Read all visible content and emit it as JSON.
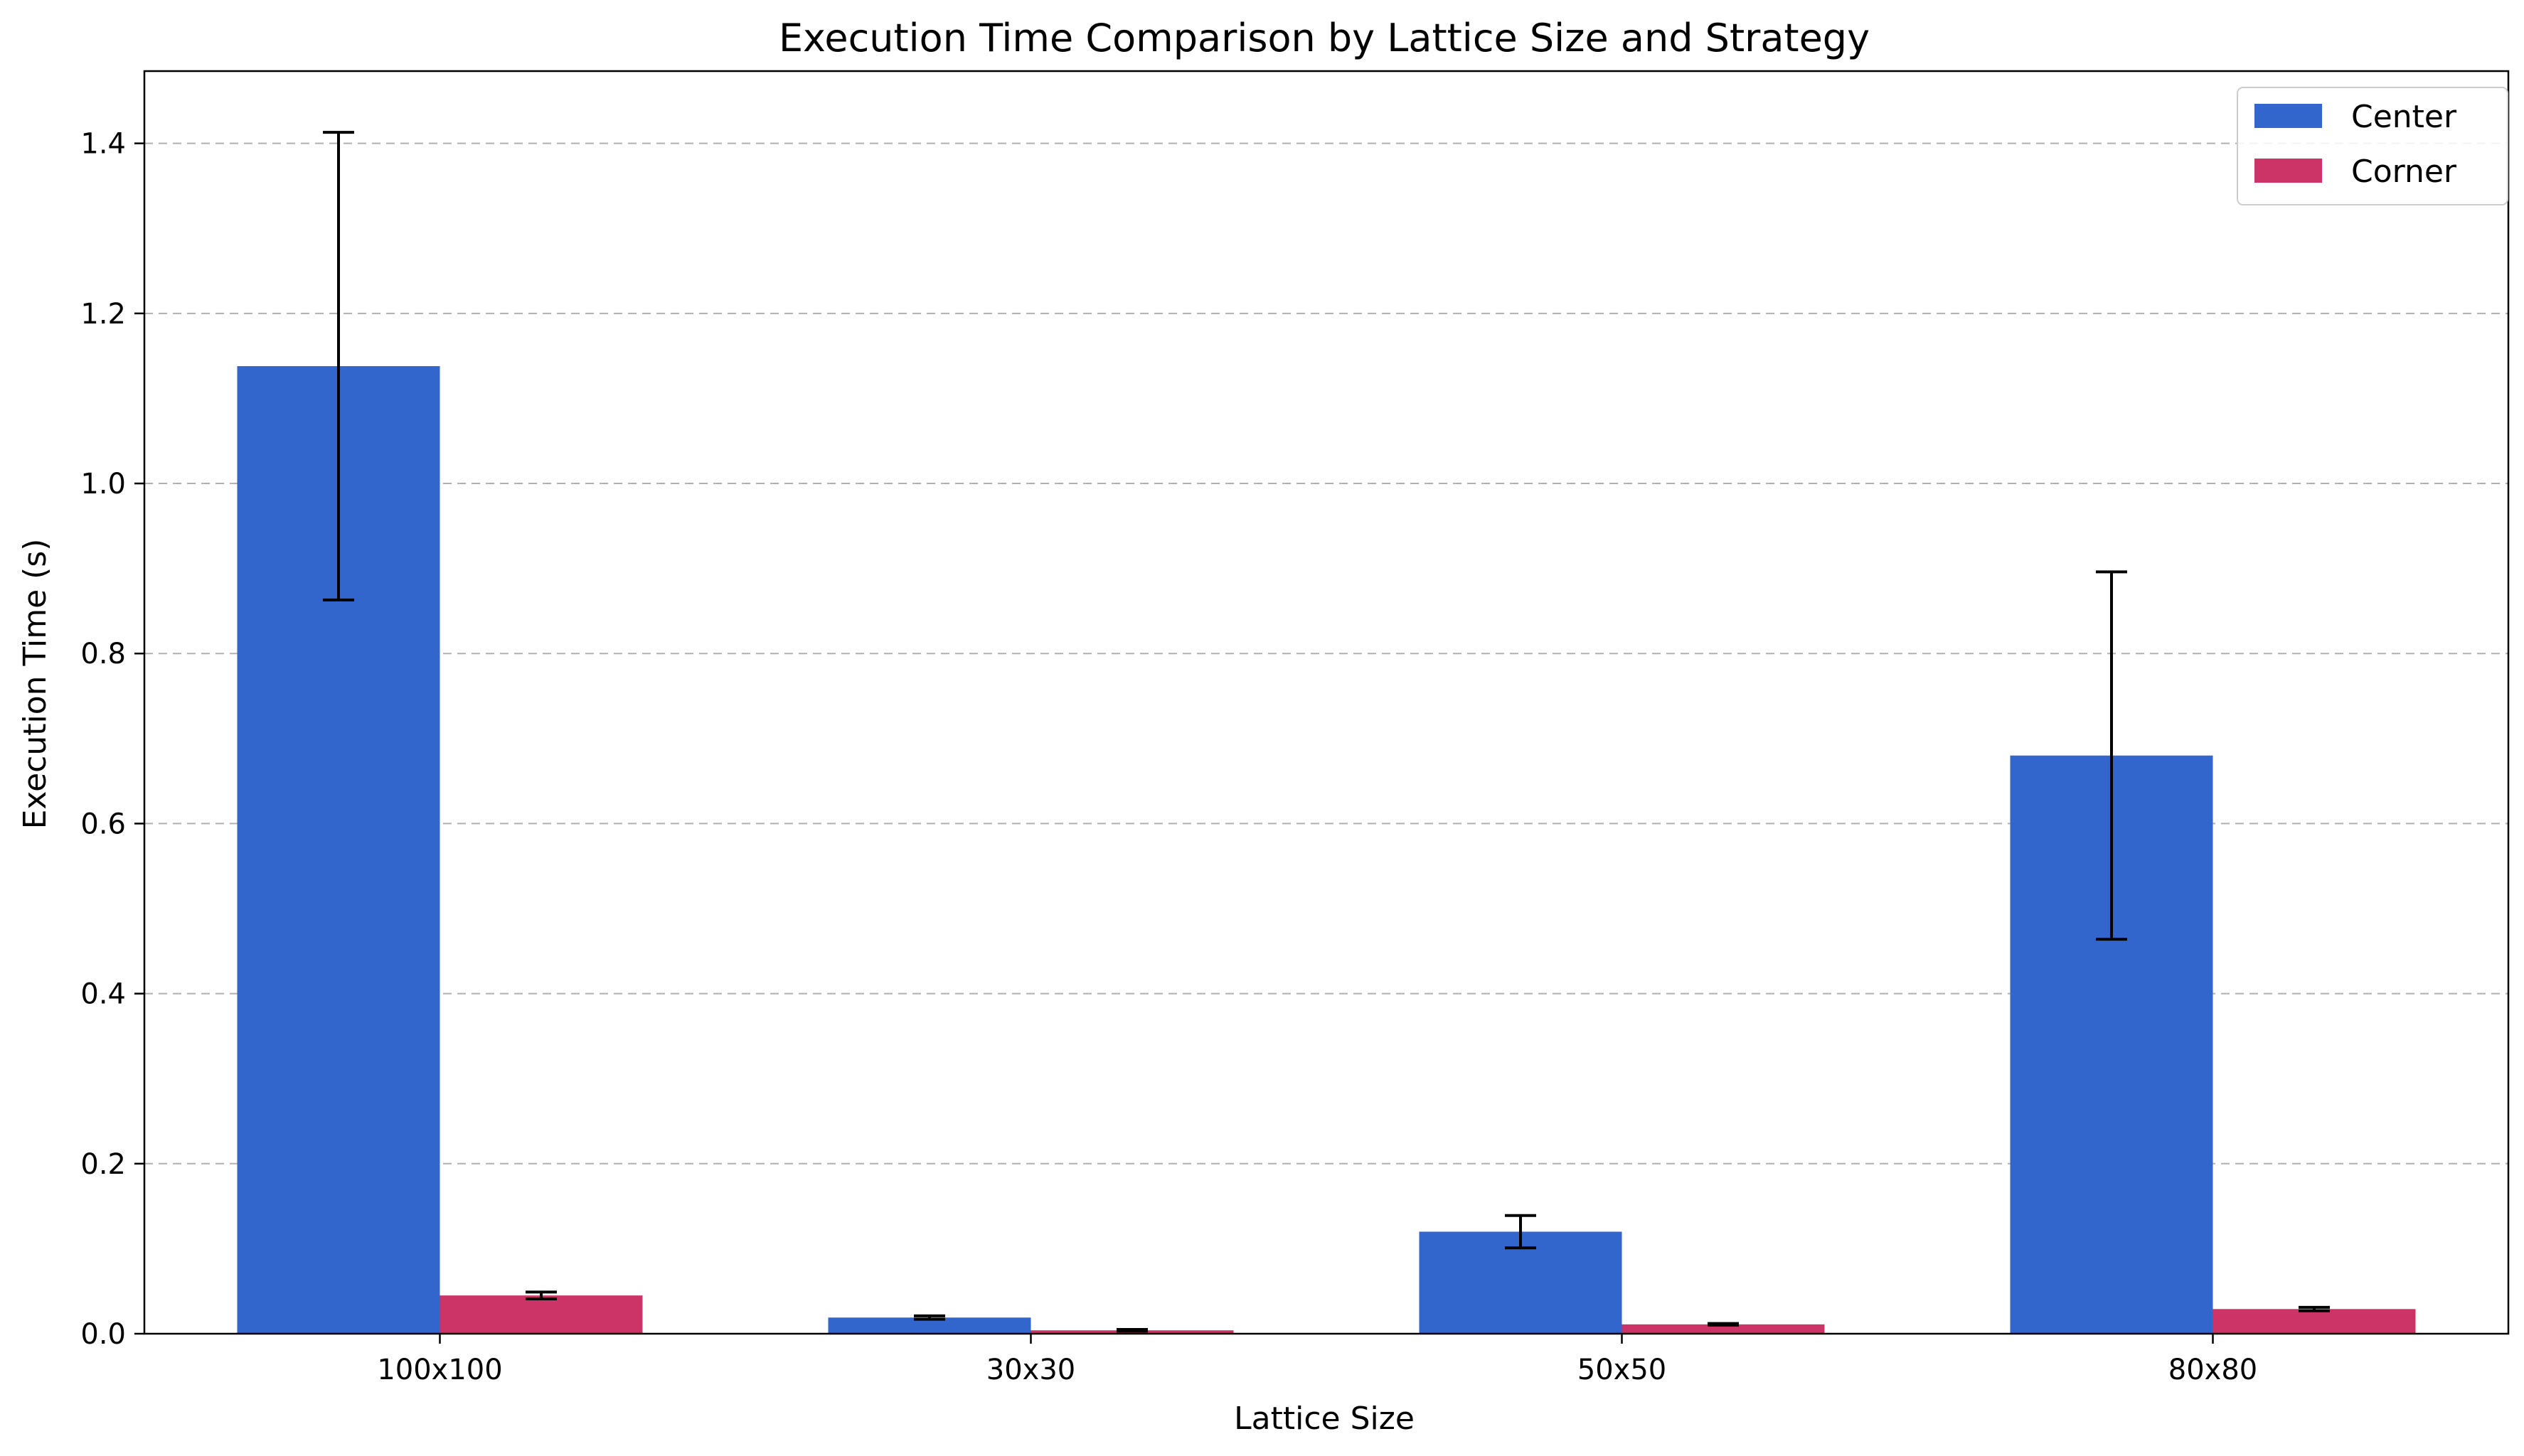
{
  "chart_data": {
    "type": "bar",
    "title": "Execution Time Comparison by Lattice Size and Strategy",
    "xlabel": "Lattice Size",
    "ylabel": "Execution Time (s)",
    "categories": [
      "100x100",
      "30x30",
      "50x50",
      "80x80"
    ],
    "ylim": [
      0,
      1.485
    ],
    "yticks": [
      "0.0",
      "0.2",
      "0.4",
      "0.6",
      "0.8",
      "1.0",
      "1.2",
      "1.4"
    ],
    "grid": "y-dashed",
    "legend_position": "top-right",
    "series": [
      {
        "name": "Center",
        "color": "#3366cc",
        "values": [
          1.138,
          0.019,
          0.12,
          0.68
        ],
        "errors": [
          0.275,
          0.002,
          0.019,
          0.216
        ]
      },
      {
        "name": "Corner",
        "color": "#cc3366",
        "values": [
          0.045,
          0.004,
          0.011,
          0.029
        ],
        "errors": [
          0.004,
          0.001,
          0.001,
          0.002
        ]
      }
    ]
  }
}
